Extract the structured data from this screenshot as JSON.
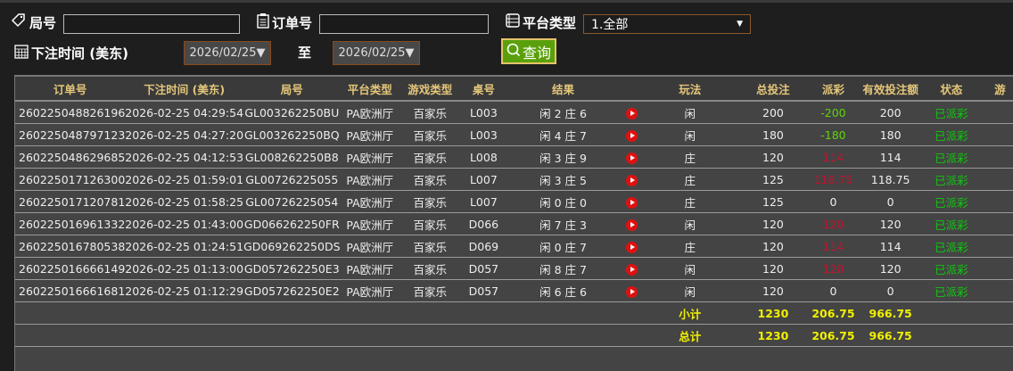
{
  "filters": {
    "round_label": "局号",
    "round_value": "",
    "order_label": "订单号",
    "order_value": "",
    "platform_label": "平台类型",
    "platform_value": "1.全部",
    "time_label": "下注时间 (美东)",
    "date_from": "2026/02/25▼",
    "to_label": "至",
    "date_to": "2026/02/25▼",
    "query_label": "查询"
  },
  "table": {
    "headers": [
      "订单号",
      "下注时间 (美东)",
      "局号",
      "平台类型",
      "游戏类型",
      "桌号",
      "结果",
      "",
      "玩法",
      "总投注",
      "派彩",
      "有效投注额",
      "状态",
      "游"
    ],
    "rows": [
      [
        "260225048826196",
        "2026-02-25 04:29:54",
        "GL003262250BU",
        "PA欧洲厅",
        "百家乐",
        "L003",
        "闲 2 庄 6",
        "",
        "闲",
        "200",
        "-200",
        "200",
        "已派彩"
      ],
      [
        "260225048797123",
        "2026-02-25 04:27:20",
        "GL003262250BQ",
        "PA欧洲厅",
        "百家乐",
        "L003",
        "闲 4 庄 7",
        "",
        "闲",
        "180",
        "-180",
        "180",
        "已派彩"
      ],
      [
        "260225048629685",
        "2026-02-25 04:12:53",
        "GL008262250B8",
        "PA欧洲厅",
        "百家乐",
        "L008",
        "闲 3 庄 9",
        "",
        "庄",
        "120",
        "114",
        "114",
        "已派彩"
      ],
      [
        "260225017126300",
        "2026-02-25 01:59:01",
        "GL00726225055",
        "PA欧洲厅",
        "百家乐",
        "L007",
        "闲 3 庄 5",
        "",
        "庄",
        "125",
        "118.75",
        "118.75",
        "已派彩"
      ],
      [
        "260225017120781",
        "2026-02-25 01:58:25",
        "GL00726225054",
        "PA欧洲厅",
        "百家乐",
        "L007",
        "闲 0 庄 0",
        "",
        "庄",
        "125",
        "0",
        "0",
        "已派彩"
      ],
      [
        "260225016961332",
        "2026-02-25 01:43:00",
        "GD066262250FR",
        "PA欧洲厅",
        "百家乐",
        "D066",
        "闲 7 庄 3",
        "",
        "闲",
        "120",
        "120",
        "120",
        "已派彩"
      ],
      [
        "260225016780538",
        "2026-02-25 01:24:51",
        "GD069262250DS",
        "PA欧洲厅",
        "百家乐",
        "D069",
        "闲 0 庄 7",
        "",
        "庄",
        "120",
        "114",
        "114",
        "已派彩"
      ],
      [
        "260225016666149",
        "2026-02-25 01:13:00",
        "GD057262250E3",
        "PA欧洲厅",
        "百家乐",
        "D057",
        "闲 8 庄 7",
        "",
        "闲",
        "120",
        "120",
        "120",
        "已派彩"
      ],
      [
        "260225016661681",
        "2026-02-25 01:12:29",
        "GD057262250E2",
        "PA欧洲厅",
        "百家乐",
        "D057",
        "闲 6 庄 6",
        "",
        "闲",
        "120",
        "0",
        "0",
        "已派彩"
      ]
    ],
    "subtotal": {
      "label": "小计",
      "bet": "1230",
      "payout": "206.75",
      "valid": "966.75"
    },
    "total": {
      "label": "总计",
      "bet": "1230",
      "payout": "206.75",
      "valid": "966.75"
    }
  },
  "colors": {
    "negative_payout": "#5fd40a",
    "positive_payout": "#c8102e",
    "status": "#10c810",
    "summary": "#f0f000",
    "header": "#e5c77a",
    "query_button": "#5aa00c"
  }
}
